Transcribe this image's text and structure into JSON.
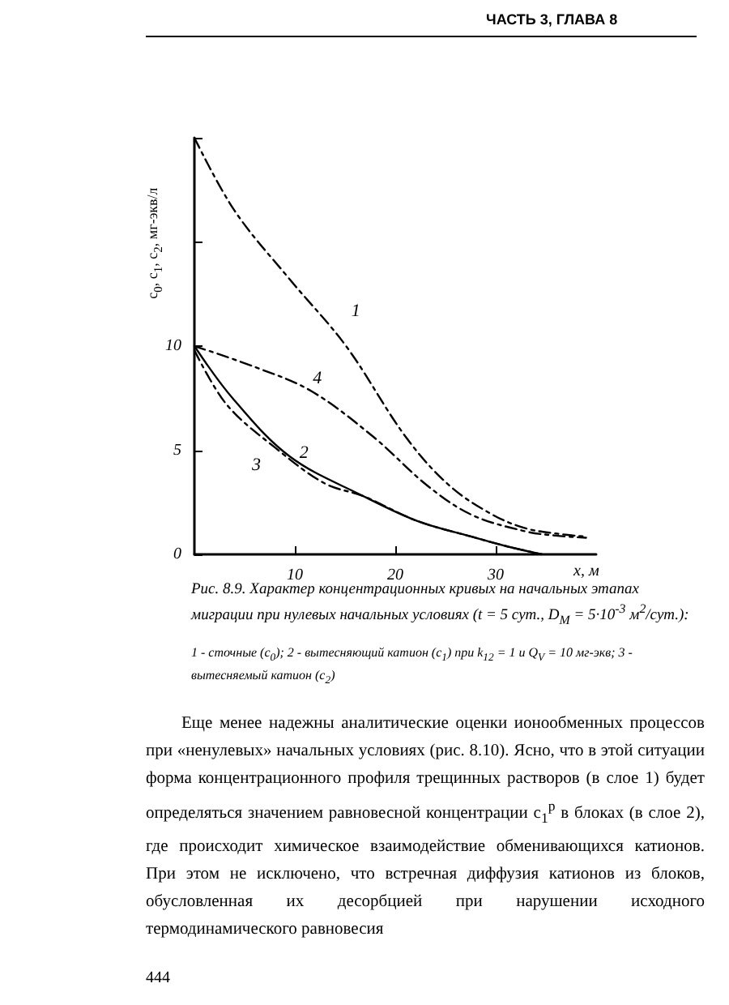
{
  "chart_data": {
    "type": "line",
    "title": "Рис. 8.9. Характер концентрационных кривых на начальных этапах миграции при нулевых начальных условиях (t = 5 сут., D$_{M}$ = 5·10$^{-3}$ м$^{2}$/сут.):",
    "xlabel": "x, м",
    "ylabel": "c$_{0}$, c$_{1}$, c$_{2}$, мг-экв/л",
    "xlim": [
      0,
      40
    ],
    "xticks": [
      10,
      20,
      30
    ],
    "ylim": [
      0,
      20
    ],
    "yticks": [
      0,
      5,
      10,
      {
        "value": 15,
        "label": null
      },
      {
        "value": 20,
        "label": null
      }
    ],
    "grid": false,
    "legend": false,
    "marker": "none",
    "series": [
      {
        "name": "1",
        "color": "#000000",
        "line_style": "dashed",
        "x": [
          0,
          4,
          9.5,
          15.1,
          21.1,
          25.4,
          29.7,
          33,
          36,
          39
        ],
        "values": [
          20,
          16.5,
          13.2,
          10,
          5.6,
          3.3,
          1.9,
          1.25,
          1,
          0.85
        ]
      },
      {
        "name": "2",
        "color": "#000000",
        "line_style": "solid",
        "x": [
          0,
          3.8,
          9.5,
          16.8,
          22.2,
          27.6,
          31,
          34.6
        ],
        "values": [
          10,
          7.5,
          4.7,
          2.8,
          1.6,
          0.85,
          0.4,
          0
        ]
      },
      {
        "name": "3",
        "color": "#000000",
        "line_style": "dashed",
        "x": [
          0,
          3.2,
          8.1,
          13,
          16.8,
          22.2,
          27.6,
          31,
          34.6
        ],
        "values": [
          9.8,
          7.2,
          5.1,
          3.4,
          2.8,
          1.6,
          0.85,
          0.4,
          0
        ]
      },
      {
        "name": "4",
        "color": "#000000",
        "line_style": "dashed",
        "x": [
          0,
          6,
          11.6,
          17.8,
          23.2,
          27.6,
          33,
          36,
          39
        ],
        "values": [
          10,
          9,
          7.85,
          5.65,
          3.3,
          1.9,
          1.1,
          0.9,
          0.8
        ]
      }
    ],
    "annotations": [
      "ЧАСТЬ 3, ГЛАВА 8",
      "1 - сточные (c$_{0}$); 2 - вытесняющий катион (c$_{1}$) при k$_{12}$ = 1 и Q$_{V}$ = 10 мг-экв; 3 - вытесняемый катион (c$_{2}$)",
      "Еще менее надежны аналитические оценки ионообменных процессов при «ненулевых» начальных условиях (рис. 8.10). Ясно, что в этой ситуации форма концентрационного профиля трещинных растворов (в слое 1) будет определяться значением равновесной концентрации c$_{1}$$^{р}$ в блоках (в слое 2), где происходит химическое взаимодействие обменивающихся катионов. При этом не исключено, что встречная диффузия катионов из блоков, обусловленная их десорбцией при нарушении исходного термодинамического равновесия",
      "444"
    ]
  }
}
